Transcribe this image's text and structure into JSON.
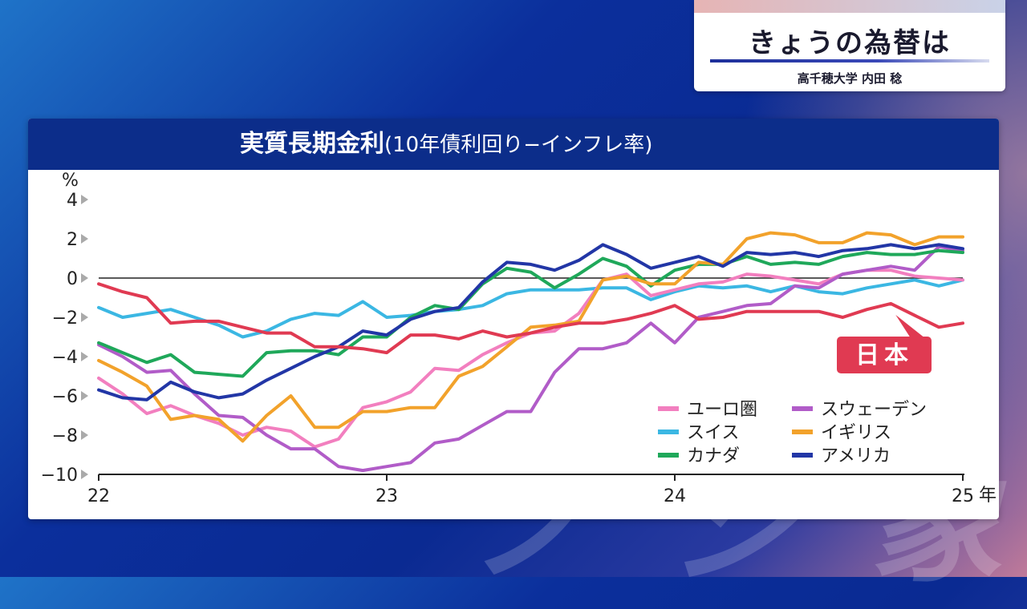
{
  "header": {
    "title": "きょうの為替は",
    "subtitle": "高千穂大学 内田 稔"
  },
  "chart_panel": {
    "title": "実質長期金利",
    "title_paren": "(10年債利回り−インフレ率)"
  },
  "colors": {
    "euro": "#f27fbf",
    "sweden": "#b15cc8",
    "swiss": "#3bb7e3",
    "uk": "#f2a22b",
    "canada": "#1fa85a",
    "usa": "#2236a6",
    "japan": "#e03a52",
    "panel_header": "#0c2d8a"
  },
  "chart_data": {
    "type": "line",
    "ylabel": "%",
    "ylim": [
      -10,
      4
    ],
    "yticks": [
      4,
      2,
      0,
      -2,
      -4,
      -6,
      -8,
      -10
    ],
    "ytick_labels": [
      "4",
      "2",
      "0",
      "−2",
      "−4",
      "−6",
      "−8",
      "−10"
    ],
    "xlim": [
      2022.0,
      2025.0
    ],
    "xticks": [
      2022,
      2023,
      2024,
      2025
    ],
    "xtick_labels": [
      "22",
      "23",
      "24",
      "25"
    ],
    "x_unit": "年",
    "x": [
      2022.0,
      2022.083,
      2022.167,
      2022.25,
      2022.333,
      2022.417,
      2022.5,
      2022.583,
      2022.667,
      2022.75,
      2022.833,
      2022.917,
      2023.0,
      2023.083,
      2023.167,
      2023.25,
      2023.333,
      2023.417,
      2023.5,
      2023.583,
      2023.667,
      2023.75,
      2023.833,
      2023.917,
      2024.0,
      2024.083,
      2024.167,
      2024.25,
      2024.333,
      2024.417,
      2024.5,
      2024.583,
      2024.667,
      2024.75,
      2024.833,
      2024.917,
      2025.0
    ],
    "grid": false,
    "series": [
      {
        "name": "ユーロ圏",
        "key": "euro",
        "values": [
          -5.1,
          -5.9,
          -6.9,
          -6.5,
          -7.0,
          -7.4,
          -8.0,
          -7.6,
          -7.8,
          -8.6,
          -8.2,
          -6.6,
          -6.3,
          -5.8,
          -4.6,
          -4.7,
          -3.9,
          -3.3,
          -2.8,
          -2.7,
          -1.8,
          -0.1,
          0.2,
          -0.9,
          -0.6,
          -0.3,
          -0.2,
          0.2,
          0.1,
          -0.1,
          -0.3,
          0.2,
          0.4,
          0.4,
          0.1,
          0.0,
          -0.1
        ]
      },
      {
        "name": "スウェーデン",
        "key": "sweden",
        "values": [
          -3.4,
          -4.0,
          -4.8,
          -4.7,
          -5.9,
          -7.0,
          -7.1,
          -8.0,
          -8.7,
          -8.7,
          -9.6,
          -9.8,
          -9.6,
          -9.4,
          -8.4,
          -8.2,
          -7.5,
          -6.8,
          -6.8,
          -4.8,
          -3.6,
          -3.6,
          -3.3,
          -2.3,
          -3.3,
          -2.0,
          -1.7,
          -1.4,
          -1.3,
          -0.4,
          -0.5,
          0.2,
          0.4,
          0.6,
          0.4,
          1.6,
          1.4
        ]
      },
      {
        "name": "スイス",
        "key": "swiss",
        "values": [
          -1.5,
          -2.0,
          -1.8,
          -1.6,
          -2.0,
          -2.4,
          -3.0,
          -2.7,
          -2.1,
          -1.8,
          -1.9,
          -1.2,
          -2.0,
          -1.9,
          -1.7,
          -1.6,
          -1.4,
          -0.8,
          -0.6,
          -0.6,
          -0.6,
          -0.5,
          -0.5,
          -1.1,
          -0.7,
          -0.4,
          -0.5,
          -0.4,
          -0.7,
          -0.4,
          -0.7,
          -0.8,
          -0.5,
          -0.3,
          -0.1,
          -0.4,
          -0.1
        ]
      },
      {
        "name": "イギリス",
        "key": "uk",
        "values": [
          -4.2,
          -4.8,
          -5.5,
          -7.2,
          -7.0,
          -7.2,
          -8.3,
          -7.0,
          -6.0,
          -7.6,
          -7.6,
          -6.8,
          -6.8,
          -6.6,
          -6.6,
          -5.0,
          -4.5,
          -3.5,
          -2.5,
          -2.4,
          -2.2,
          -0.1,
          0.1,
          -0.3,
          -0.3,
          0.8,
          0.7,
          2.0,
          2.3,
          2.2,
          1.8,
          1.8,
          2.3,
          2.2,
          1.7,
          2.1,
          2.1
        ]
      },
      {
        "name": "カナダ",
        "key": "canada",
        "values": [
          -3.3,
          -3.8,
          -4.3,
          -3.9,
          -4.8,
          -4.9,
          -5.0,
          -3.8,
          -3.7,
          -3.7,
          -3.9,
          -3.0,
          -3.0,
          -2.0,
          -1.4,
          -1.6,
          -0.3,
          0.5,
          0.3,
          -0.5,
          0.2,
          1.0,
          0.6,
          -0.4,
          0.4,
          0.7,
          0.7,
          1.1,
          0.7,
          0.8,
          0.7,
          1.1,
          1.3,
          1.2,
          1.2,
          1.4,
          1.3
        ]
      },
      {
        "name": "アメリカ",
        "key": "usa",
        "values": [
          -5.7,
          -6.1,
          -6.2,
          -5.3,
          -5.8,
          -6.1,
          -5.9,
          -5.2,
          -4.6,
          -4.0,
          -3.5,
          -2.7,
          -2.9,
          -2.1,
          -1.7,
          -1.5,
          -0.2,
          0.8,
          0.7,
          0.4,
          0.9,
          1.7,
          1.2,
          0.5,
          0.8,
          1.1,
          0.6,
          1.3,
          1.2,
          1.3,
          1.1,
          1.4,
          1.5,
          1.7,
          1.5,
          1.7,
          1.5
        ]
      },
      {
        "name": "日本",
        "key": "japan",
        "label": "日本",
        "values": [
          -0.3,
          -0.7,
          -1.0,
          -2.3,
          -2.2,
          -2.2,
          -2.5,
          -2.8,
          -2.8,
          -3.5,
          -3.5,
          -3.6,
          -3.8,
          -2.9,
          -2.9,
          -3.1,
          -2.7,
          -3.0,
          -2.8,
          -2.5,
          -2.3,
          -2.3,
          -2.1,
          -1.8,
          -1.4,
          -2.1,
          -2.0,
          -1.7,
          -1.7,
          -1.7,
          -1.7,
          -2.0,
          -1.6,
          -1.3,
          -1.9,
          -2.5,
          -2.3
        ]
      }
    ],
    "legend": {
      "placement": "bottom-right",
      "items": [
        {
          "label": "ユーロ圏",
          "key": "euro"
        },
        {
          "label": "スウェーデン",
          "key": "sweden"
        },
        {
          "label": "スイス",
          "key": "swiss"
        },
        {
          "label": "イギリス",
          "key": "uk"
        },
        {
          "label": "カナダ",
          "key": "canada"
        },
        {
          "label": "アメリカ",
          "key": "usa"
        }
      ]
    }
  }
}
